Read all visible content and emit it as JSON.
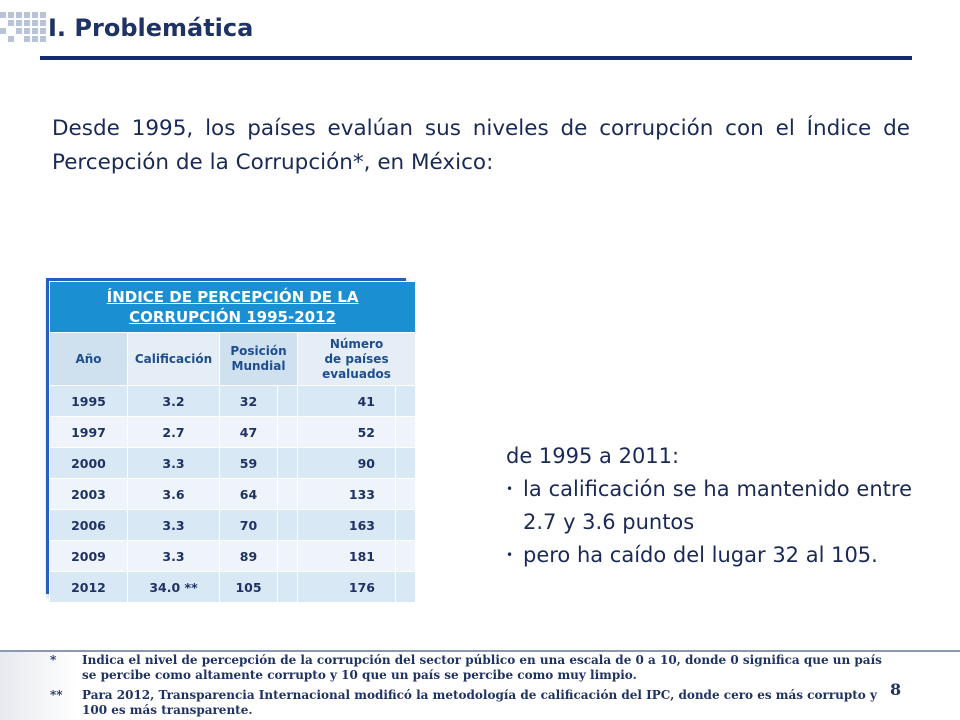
{
  "header": {
    "title": "I. Problemática"
  },
  "intro": {
    "text": "Desde 1995, los países evalúan sus niveles de corrupción con el Índice de Percepción de la Corrupción*, en México:"
  },
  "table": {
    "title_line1": "ÍNDICE DE PERCEPCIÓN DE LA",
    "title_line2": "CORRUPCIÓN 1995-2012",
    "headers": {
      "year": "Año",
      "score": "Calificación",
      "rank_line1": "Posición",
      "rank_line2": "Mundial",
      "countries_line1": "Número",
      "countries_line2": "de países",
      "countries_line3": "evaluados"
    },
    "rows": [
      {
        "year": "1995",
        "score": "3.2",
        "rank": "32",
        "countries": "41"
      },
      {
        "year": "1997",
        "score": "2.7",
        "rank": "47",
        "countries": "52"
      },
      {
        "year": "2000",
        "score": "3.3",
        "rank": "59",
        "countries": "90"
      },
      {
        "year": "2003",
        "score": "3.6",
        "rank": "64",
        "countries": "133"
      },
      {
        "year": "2006",
        "score": "3.3",
        "rank": "70",
        "countries": "163"
      },
      {
        "year": "2009",
        "score": "3.3",
        "rank": "89",
        "countries": "181"
      },
      {
        "year": "2012",
        "score": "34.0 **",
        "rank": "105",
        "countries": "176"
      }
    ]
  },
  "summary": {
    "lead": "de 1995 a 2011:",
    "bullet_icon": "bullet-dot",
    "bullets": [
      "la calificación se ha mantenido entre 2.7 y 3.6 puntos",
      "pero ha caído del lugar 32 al 105."
    ]
  },
  "footnotes": [
    {
      "mark": "*",
      "text": "Indica el nivel de percepción de la corrupción del sector público en una escala de 0 a 10, donde 0 significa que un país se percibe como altamente corrupto y 10 que un país se percibe como muy limpio."
    },
    {
      "mark": "**",
      "text": "Para 2012, Transparencia Internacional modificó la metodología de calificación del IPC, donde cero es más corrupto y 100 es más transparente."
    }
  ],
  "page_number": "8",
  "colors": {
    "accent": "#142b73",
    "table_header": "#1a8fd2",
    "table_border": "#1f60c0",
    "text": "#1a2a55"
  }
}
